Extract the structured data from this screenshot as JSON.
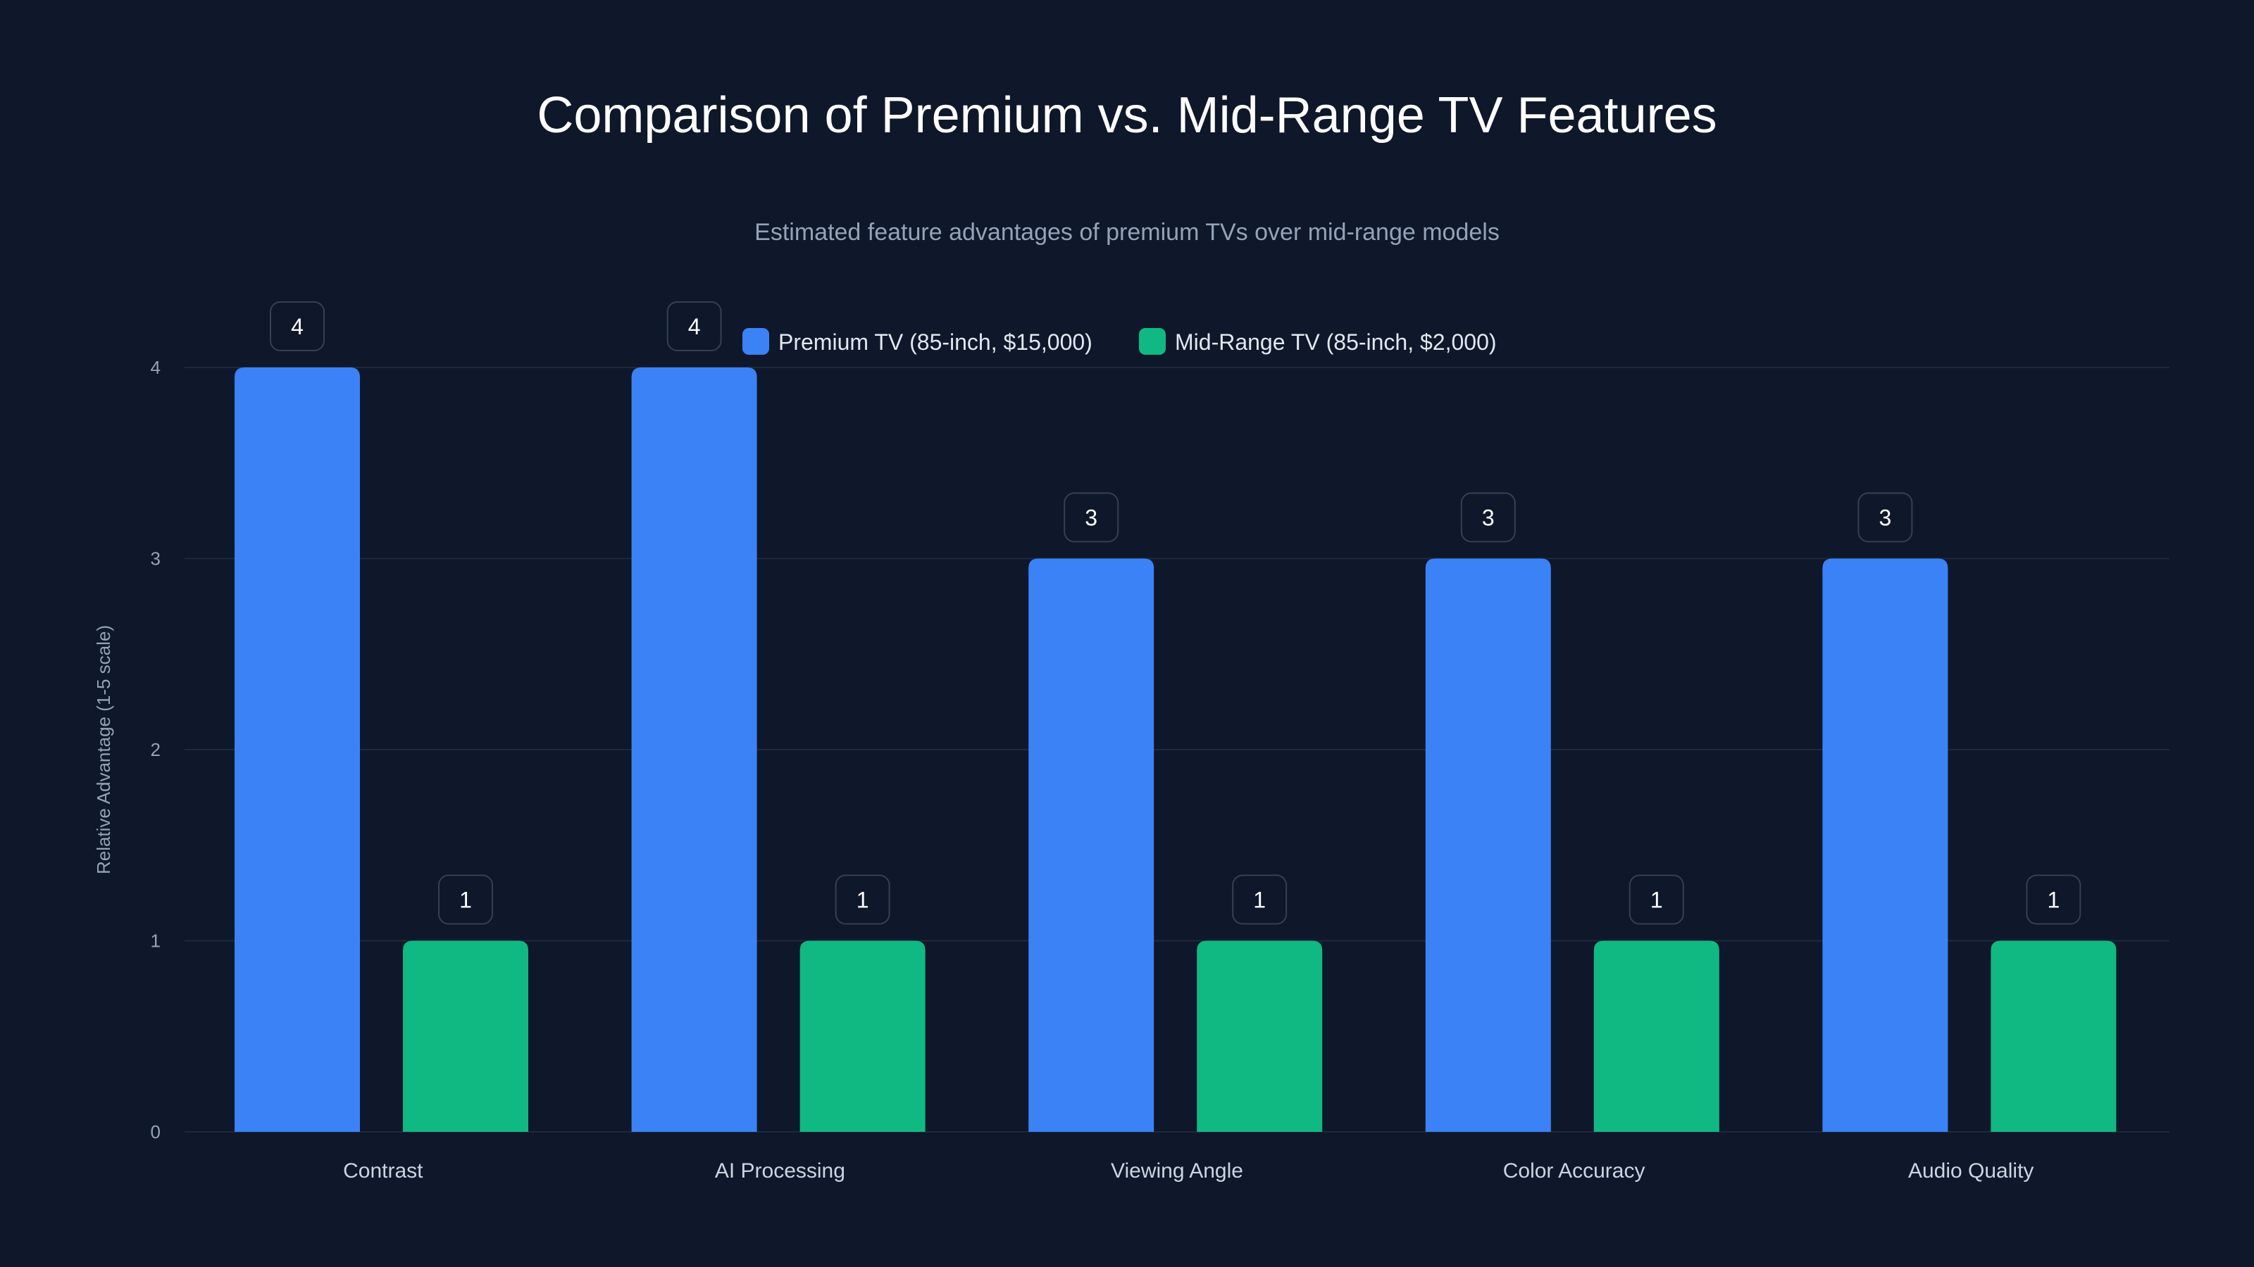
{
  "chart_data": {
    "type": "bar",
    "title": "Comparison of Premium vs. Mid-Range TV Features",
    "subtitle": "Estimated feature advantages of premium TVs over mid-range models",
    "xlabel": "",
    "ylabel": "Relative Advantage (1-5 scale)",
    "ylim": [
      0,
      4
    ],
    "yticks": [
      0,
      1,
      2,
      3,
      4
    ],
    "grid": true,
    "legend_placement": "top-center",
    "categories": [
      "Contrast",
      "AI Processing",
      "Viewing Angle",
      "Color Accuracy",
      "Audio Quality"
    ],
    "series": [
      {
        "name": "Premium TV (85-inch, $15,000)",
        "color": "#3b82f6",
        "values": [
          4,
          4,
          3,
          3,
          3
        ]
      },
      {
        "name": "Mid-Range TV (85-inch, $2,000)",
        "color": "#10b981",
        "values": [
          1,
          1,
          1,
          1,
          1
        ]
      }
    ]
  }
}
